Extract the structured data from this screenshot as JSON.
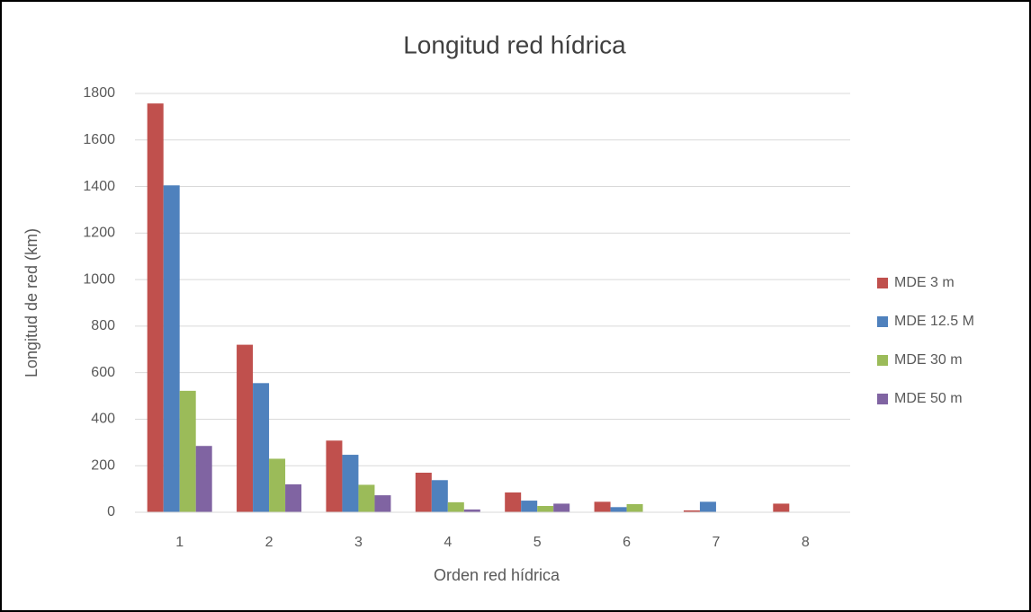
{
  "chart_data": {
    "type": "bar",
    "title": "Longitud red hídrica",
    "xlabel": "Orden red hídrica",
    "ylabel": "Longitud de red (km)",
    "categories": [
      "1",
      "2",
      "3",
      "4",
      "5",
      "6",
      "7",
      "8"
    ],
    "series": [
      {
        "name": "MDE 3 m",
        "color": "#c0504d",
        "values": [
          1757,
          720,
          308,
          170,
          85,
          45,
          8,
          37
        ]
      },
      {
        "name": "MDE 12.5 M",
        "color": "#4f81bd",
        "values": [
          1405,
          555,
          247,
          138,
          50,
          22,
          45,
          null
        ]
      },
      {
        "name": "MDE 30 m",
        "color": "#9bbb59",
        "values": [
          522,
          230,
          118,
          43,
          27,
          35,
          null,
          null
        ]
      },
      {
        "name": "MDE 50 m",
        "color": "#8064a2",
        "values": [
          285,
          120,
          73,
          12,
          37,
          null,
          null,
          null
        ]
      }
    ],
    "ylim": [
      0,
      1800
    ],
    "yticks": [
      0,
      200,
      400,
      600,
      800,
      1000,
      1200,
      1400,
      1600,
      1800
    ],
    "grid": true,
    "legend": "right"
  }
}
